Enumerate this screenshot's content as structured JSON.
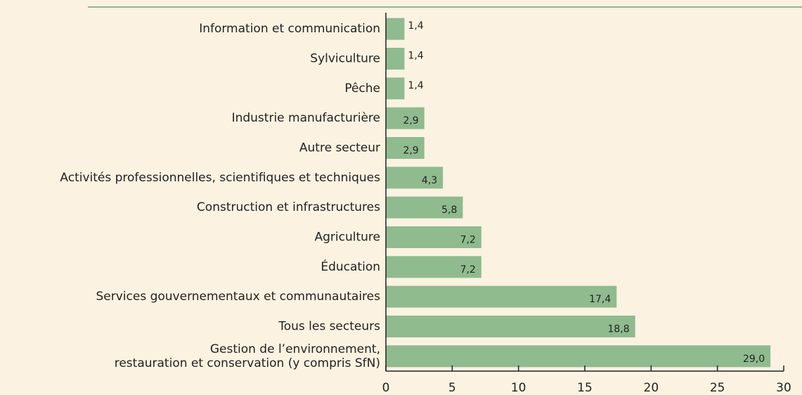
{
  "chart_data": {
    "type": "bar",
    "orientation": "horizontal",
    "categories": [
      "Information et communication",
      "Sylviculture",
      "Pêche",
      "Industrie manufacturière",
      "Autre secteur",
      "Activités professionnelles, scientifiques et techniques",
      "Construction et infrastructures",
      "Agriculture",
      "Éducation",
      "Services gouvernementaux et communautaires",
      "Tous les secteurs",
      "Gestion de l’environnement,\nrestauration et conservation (y compris SfN)"
    ],
    "values": [
      1.4,
      1.4,
      1.4,
      2.9,
      2.9,
      4.3,
      5.8,
      7.2,
      7.2,
      17.4,
      18.8,
      29.0
    ],
    "value_labels": [
      "1,4",
      "1,4",
      "1,4",
      "2,9",
      "2,9",
      "4,3",
      "5,8",
      "7,2",
      "7,2",
      "17,4",
      "18,8",
      "29,0"
    ],
    "color": "#8fbb8f",
    "xlim": [
      0,
      30
    ],
    "xticks": [
      0,
      5,
      10,
      15,
      20,
      25,
      30
    ]
  }
}
